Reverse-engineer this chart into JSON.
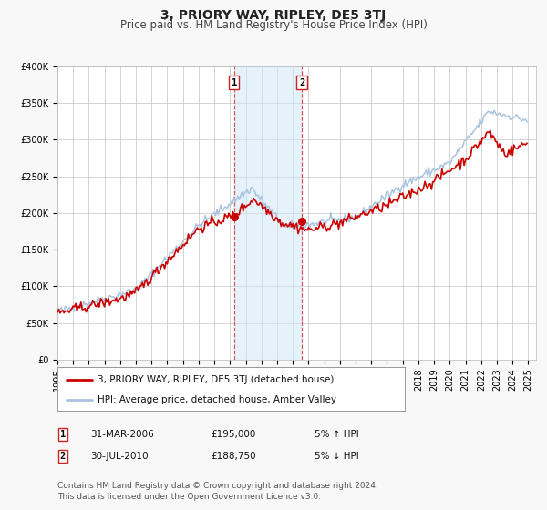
{
  "title": "3, PRIORY WAY, RIPLEY, DE5 3TJ",
  "subtitle": "Price paid vs. HM Land Registry's House Price Index (HPI)",
  "ylim": [
    0,
    400000
  ],
  "xlim_start": 1995.0,
  "xlim_end": 2025.5,
  "yticks": [
    0,
    50000,
    100000,
    150000,
    200000,
    250000,
    300000,
    350000,
    400000
  ],
  "ytick_labels": [
    "£0",
    "£50K",
    "£100K",
    "£150K",
    "£200K",
    "£250K",
    "£300K",
    "£350K",
    "£400K"
  ],
  "xticks": [
    1995,
    1996,
    1997,
    1998,
    1999,
    2000,
    2001,
    2002,
    2003,
    2004,
    2005,
    2006,
    2007,
    2008,
    2009,
    2010,
    2011,
    2012,
    2013,
    2014,
    2015,
    2016,
    2017,
    2018,
    2019,
    2020,
    2021,
    2022,
    2023,
    2024,
    2025
  ],
  "background_color": "#f8f8f8",
  "plot_bg_color": "#ffffff",
  "grid_color": "#cccccc",
  "hpi_color": "#aac4e0",
  "price_color": "#cc0000",
  "marker_color": "#cc0000",
  "sale1_x": 2006.25,
  "sale1_y": 195000,
  "sale2_x": 2010.58,
  "sale2_y": 188750,
  "shade_start": 2006.25,
  "shade_end": 2010.58,
  "legend_line1": "3, PRIORY WAY, RIPLEY, DE5 3TJ (detached house)",
  "legend_line2": "HPI: Average price, detached house, Amber Valley",
  "sale1_label": "1",
  "sale1_date": "31-MAR-2006",
  "sale1_price": "£195,000",
  "sale1_hpi": "5% ↑ HPI",
  "sale2_label": "2",
  "sale2_date": "30-JUL-2010",
  "sale2_price": "£188,750",
  "sale2_hpi": "5% ↓ HPI",
  "footer_line1": "Contains HM Land Registry data © Crown copyright and database right 2024.",
  "footer_line2": "This data is licensed under the Open Government Licence v3.0.",
  "title_fontsize": 10,
  "subtitle_fontsize": 8.5,
  "tick_fontsize": 7,
  "legend_fontsize": 7.5,
  "footer_fontsize": 6.5,
  "table_fontsize": 7.5
}
